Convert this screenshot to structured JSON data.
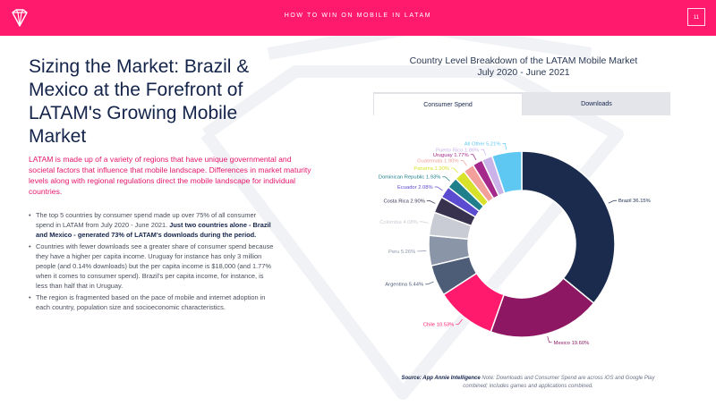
{
  "header": {
    "title": "HOW TO WIN ON MOBILE IN LATAM",
    "page_number": "11"
  },
  "heading": "Sizing the Market: Brazil & Mexico at the Forefront of LATAM's Growing Mobile Market",
  "intro": "LATAM is made up of a variety of regions that have unique governmental and societal factors that influence that mobile landscape. Differences in market maturity levels along with regional regulations direct the mobile landscape for individual countries.",
  "bullets": [
    {
      "text": "The top 5 countries by consumer spend made up over 75% of all consumer spend in LATAM from July 2020 - June 2021.",
      "bold": "Just two countries alone - Brazil and Mexico - generated 73% of LATAM's downloads during the period."
    },
    {
      "text": "Countries with fewer downloads see a greater share of consumer spend because they have a higher per capita income. Uruguay for instance has only 3 million people (and 0.14% downloads) but the per capita income is $18,000 (and 1.77% when it comes to consumer spend). Brazil's per capita income, for instance, is less than half that in Uruguay.",
      "bold": ""
    },
    {
      "text": "The region is fragmented based on the pace of mobile and internet adoption in each country, population size and socioeconomic characteristics.",
      "bold": ""
    }
  ],
  "tabs": {
    "consumer_spend": "Consumer Spend",
    "downloads": "Downloads"
  },
  "source": {
    "label": "Source: App Annie Intelligence",
    "note": "Note: Downloads and Consumer Spend are across iOS and Google Play combined; includes games and applications combined."
  },
  "chart_data": {
    "type": "pie",
    "title": "Country Level Breakdown of the LATAM Mobile Market",
    "subtitle": "July 2020 - June 2021",
    "slices": [
      {
        "label": "Brazil",
        "value": 36.15,
        "display": "Brazil 36.15%",
        "color": "#1b2b4d"
      },
      {
        "label": "Mexico",
        "value": 19.6,
        "display": "Mexico 19.60%",
        "color": "#8e1763"
      },
      {
        "label": "Chile",
        "value": 10.53,
        "display": "Chile 10.53%",
        "color": "#ff1a6e"
      },
      {
        "label": "Argentina",
        "value": 5.44,
        "display": "Argentina 5.44%",
        "color": "#4d5d78"
      },
      {
        "label": "Peru",
        "value": 5.26,
        "display": "Peru 5.26%",
        "color": "#8b95a8"
      },
      {
        "label": "Colombia",
        "value": 4.08,
        "display": "Colombia 4.08%",
        "color": "#c9ccd4"
      },
      {
        "label": "Costa Rica",
        "value": 2.9,
        "display": "Costa Rica 2.90%",
        "color": "#39324f"
      },
      {
        "label": "Ecuador",
        "value": 2.08,
        "display": "Ecuador 2.08%",
        "color": "#5b4bd0"
      },
      {
        "label": "Dominican Republic",
        "value": 1.93,
        "display": "Dominican Republic 1.93%",
        "color": "#1f7f8a"
      },
      {
        "label": "Panama",
        "value": 1.9,
        "display": "Panama 1.90%",
        "color": "#d8e22a"
      },
      {
        "label": "Guatemala",
        "value": 1.9,
        "display": "Guatemala 1.90%",
        "color": "#f4a09a"
      },
      {
        "label": "Uruguay",
        "value": 1.77,
        "display": "Uruguay 1.77%",
        "color": "#a5298a"
      },
      {
        "label": "Puerto Rico",
        "value": 1.86,
        "display": "Puerto Rico 1.86%",
        "color": "#c9b3e8"
      },
      {
        "label": "All Other",
        "value": 5.21,
        "display": "All Other 5.21%",
        "color": "#5ec8f2"
      }
    ]
  }
}
